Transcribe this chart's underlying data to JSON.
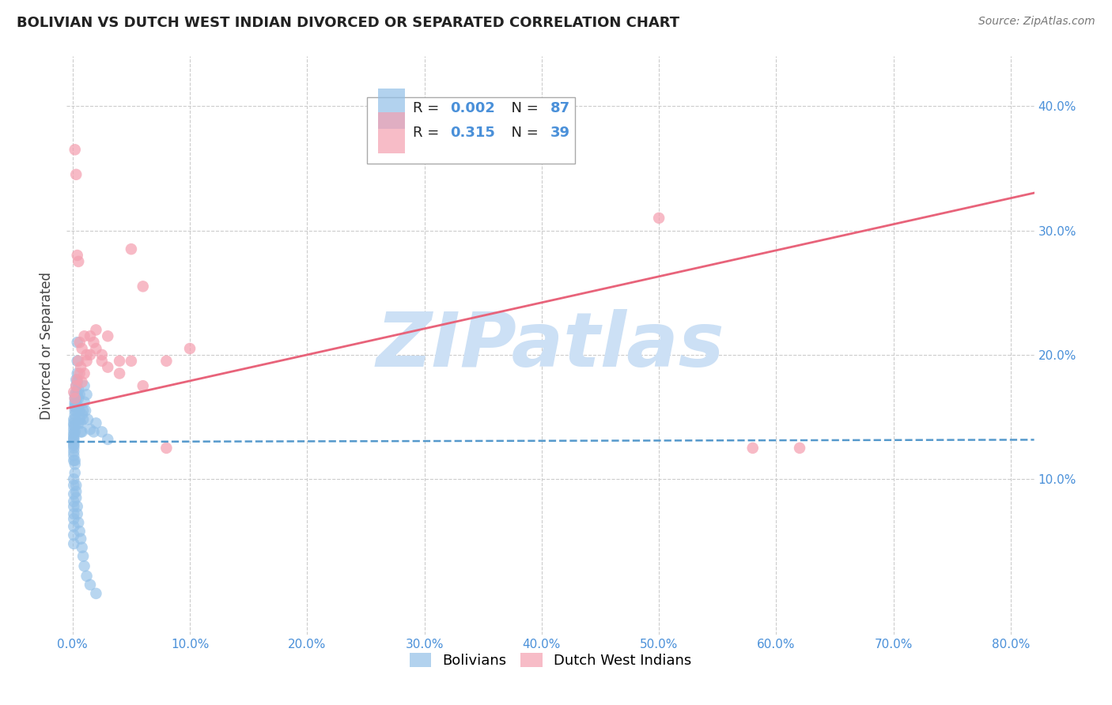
{
  "title": "BOLIVIAN VS DUTCH WEST INDIAN DIVORCED OR SEPARATED CORRELATION CHART",
  "source": "Source: ZipAtlas.com",
  "ylabel": "Divorced or Separated",
  "xlim": [
    -0.005,
    0.82
  ],
  "ylim": [
    -0.025,
    0.44
  ],
  "ytick_values": [
    0.1,
    0.2,
    0.3,
    0.4
  ],
  "xtick_values": [
    0.0,
    0.1,
    0.2,
    0.3,
    0.4,
    0.5,
    0.6,
    0.7,
    0.8
  ],
  "xtick_labels": [
    "0.0%",
    "10.0%",
    "20.0%",
    "30.0%",
    "40.0%",
    "50.0%",
    "60.0%",
    "70.0%",
    "80.0%"
  ],
  "ytick_labels": [
    "10.0%",
    "20.0%",
    "30.0%",
    "40.0%"
  ],
  "blue_color": "#92c0e8",
  "pink_color": "#f4a0b0",
  "blue_line_color": "#5599cc",
  "pink_line_color": "#e8637a",
  "tick_color": "#4a90d9",
  "watermark_color": "#cce0f5",
  "blue_intercept": 0.13,
  "blue_slope": 0.002,
  "pink_intercept": 0.158,
  "pink_slope": 0.21,
  "bolivians_x": [
    0.001,
    0.001,
    0.001,
    0.001,
    0.001,
    0.001,
    0.001,
    0.001,
    0.001,
    0.001,
    0.001,
    0.001,
    0.001,
    0.001,
    0.001,
    0.002,
    0.002,
    0.002,
    0.002,
    0.002,
    0.002,
    0.002,
    0.002,
    0.002,
    0.002,
    0.003,
    0.003,
    0.003,
    0.003,
    0.003,
    0.003,
    0.003,
    0.004,
    0.004,
    0.004,
    0.004,
    0.004,
    0.005,
    0.005,
    0.005,
    0.005,
    0.006,
    0.006,
    0.006,
    0.007,
    0.007,
    0.008,
    0.008,
    0.009,
    0.009,
    0.01,
    0.01,
    0.011,
    0.012,
    0.013,
    0.015,
    0.018,
    0.02,
    0.025,
    0.03,
    0.001,
    0.001,
    0.001,
    0.001,
    0.001,
    0.001,
    0.001,
    0.001,
    0.001,
    0.001,
    0.002,
    0.002,
    0.002,
    0.003,
    0.003,
    0.003,
    0.004,
    0.004,
    0.005,
    0.006,
    0.007,
    0.008,
    0.009,
    0.01,
    0.012,
    0.015,
    0.02
  ],
  "bolivians_y": [
    0.135,
    0.13,
    0.125,
    0.128,
    0.132,
    0.127,
    0.122,
    0.133,
    0.119,
    0.115,
    0.14,
    0.137,
    0.143,
    0.148,
    0.145,
    0.138,
    0.155,
    0.162,
    0.168,
    0.16,
    0.158,
    0.152,
    0.148,
    0.143,
    0.165,
    0.175,
    0.17,
    0.165,
    0.18,
    0.158,
    0.163,
    0.155,
    0.21,
    0.195,
    0.185,
    0.178,
    0.168,
    0.172,
    0.165,
    0.158,
    0.145,
    0.168,
    0.155,
    0.148,
    0.138,
    0.145,
    0.152,
    0.138,
    0.148,
    0.155,
    0.175,
    0.162,
    0.155,
    0.168,
    0.148,
    0.14,
    0.138,
    0.145,
    0.138,
    0.132,
    0.1,
    0.095,
    0.088,
    0.082,
    0.078,
    0.072,
    0.068,
    0.062,
    0.055,
    0.048,
    0.115,
    0.105,
    0.112,
    0.095,
    0.09,
    0.085,
    0.078,
    0.072,
    0.065,
    0.058,
    0.052,
    0.045,
    0.038,
    0.03,
    0.022,
    0.015,
    0.008
  ],
  "dutch_x": [
    0.001,
    0.002,
    0.003,
    0.004,
    0.005,
    0.006,
    0.007,
    0.008,
    0.01,
    0.012,
    0.015,
    0.018,
    0.02,
    0.025,
    0.03,
    0.04,
    0.05,
    0.06,
    0.08,
    0.1,
    0.002,
    0.003,
    0.004,
    0.005,
    0.006,
    0.008,
    0.01,
    0.012,
    0.015,
    0.02,
    0.025,
    0.03,
    0.04,
    0.05,
    0.06,
    0.08,
    0.5,
    0.58,
    0.62
  ],
  "dutch_y": [
    0.17,
    0.165,
    0.175,
    0.18,
    0.195,
    0.185,
    0.19,
    0.178,
    0.185,
    0.195,
    0.2,
    0.21,
    0.205,
    0.195,
    0.19,
    0.185,
    0.195,
    0.175,
    0.195,
    0.205,
    0.365,
    0.345,
    0.28,
    0.275,
    0.21,
    0.205,
    0.215,
    0.2,
    0.215,
    0.22,
    0.2,
    0.215,
    0.195,
    0.285,
    0.255,
    0.125,
    0.31,
    0.125,
    0.125
  ]
}
